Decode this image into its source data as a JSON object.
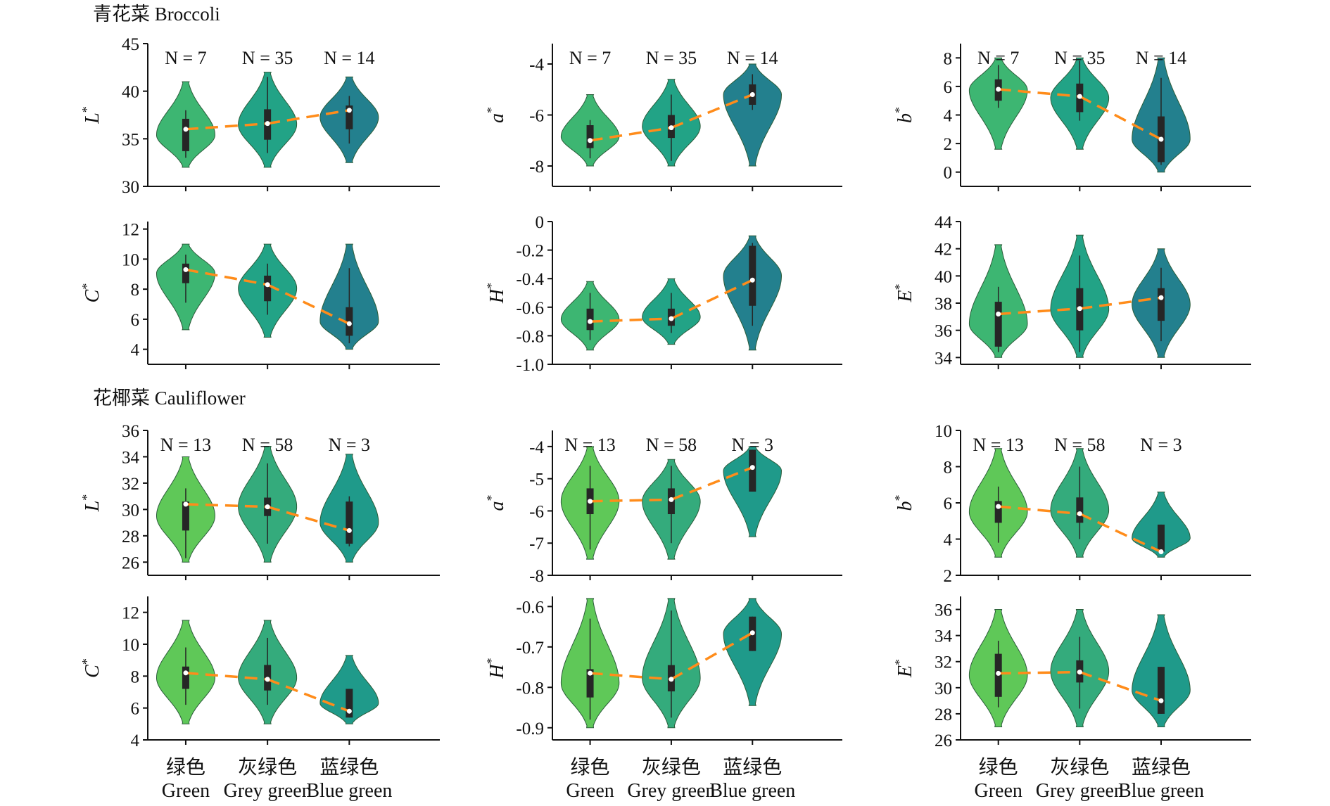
{
  "figure": {
    "section_titles": [
      "青花菜 Broccoli",
      "花椰菜 Cauliflower"
    ],
    "category_labels_cn": [
      "绿色",
      "灰绿色",
      "蓝绿色"
    ],
    "category_labels_en": [
      "Green",
      "Grey green",
      "Blue green"
    ],
    "trend_color": "#ff8c1a",
    "box_color": "#262626"
  },
  "chart_data": [
    {
      "type": "violin",
      "group": "Broccoli",
      "ylabel": "L",
      "ylabel_sup": "*",
      "ylim": [
        30,
        45
      ],
      "yticks": [
        30,
        35,
        40,
        45
      ],
      "ytick_labels": [
        "30",
        "35",
        "40",
        "45"
      ],
      "categories": [
        "Green",
        "Grey green",
        "Blue green"
      ],
      "n_labels": [
        "N = 7",
        "N = 35",
        "N = 14"
      ],
      "medians": [
        36.0,
        36.6,
        38.0
      ],
      "q1": [
        33.7,
        34.9,
        36.0
      ],
      "q3": [
        37.1,
        38.1,
        38.5
      ],
      "whisker_low": [
        33,
        33.5,
        34.5
      ],
      "whisker_high": [
        38,
        41.5,
        39.5
      ],
      "range": [
        [
          32,
          41
        ],
        [
          32,
          42
        ],
        [
          32.5,
          41.5
        ]
      ],
      "colors": [
        "#3db672",
        "#22a386",
        "#23808e"
      ]
    },
    {
      "type": "violin",
      "group": "Broccoli",
      "ylabel": "a",
      "ylabel_sup": "*",
      "ylim": [
        -8.8,
        -3.2
      ],
      "yticks": [
        -8,
        -6,
        -4
      ],
      "ytick_labels": [
        "-8",
        "-6",
        "-4"
      ],
      "categories": [
        "Green",
        "Grey green",
        "Blue green"
      ],
      "n_labels": [
        "N = 7",
        "N = 35",
        "N = 14"
      ],
      "medians": [
        -7.0,
        -6.5,
        -5.2
      ],
      "q1": [
        -7.3,
        -6.9,
        -5.6
      ],
      "q3": [
        -6.4,
        -6.0,
        -4.8
      ],
      "whisker_low": [
        -7.7,
        -7.8,
        -5.8
      ],
      "whisker_high": [
        -6.2,
        -5.2,
        -4.4
      ],
      "range": [
        [
          -8,
          -5.2
        ],
        [
          -8,
          -4.6
        ],
        [
          -8,
          -4
        ]
      ],
      "colors": [
        "#3db672",
        "#22a386",
        "#23808e"
      ]
    },
    {
      "type": "violin",
      "group": "Broccoli",
      "ylabel": "b",
      "ylabel_sup": "*",
      "ylim": [
        -1,
        9
      ],
      "yticks": [
        0,
        2,
        4,
        6,
        8
      ],
      "ytick_labels": [
        "0",
        "2",
        "4",
        "6",
        "8"
      ],
      "categories": [
        "Green",
        "Grey green",
        "Blue green"
      ],
      "n_labels": [
        "N = 7",
        "N = 35",
        "N = 14"
      ],
      "medians": [
        5.8,
        5.3,
        2.3
      ],
      "q1": [
        5.0,
        4.2,
        0.7
      ],
      "q3": [
        6.5,
        6.2,
        3.9
      ],
      "whisker_low": [
        4.5,
        3.6,
        0.5
      ],
      "whisker_high": [
        7.5,
        7.8,
        6.6
      ],
      "range": [
        [
          1.6,
          8
        ],
        [
          1.6,
          8
        ],
        [
          0,
          8
        ]
      ],
      "colors": [
        "#3db672",
        "#22a386",
        "#23808e"
      ]
    },
    {
      "type": "violin",
      "group": "Broccoli",
      "ylabel": "C",
      "ylabel_sup": "*",
      "ylim": [
        3,
        12.5
      ],
      "yticks": [
        4,
        6,
        8,
        10,
        12
      ],
      "ytick_labels": [
        "4",
        "6",
        "8",
        "10",
        "12"
      ],
      "categories": [
        "Green",
        "Grey green",
        "Blue green"
      ],
      "n_labels": [],
      "medians": [
        9.3,
        8.3,
        5.7
      ],
      "q1": [
        8.4,
        7.2,
        4.9
      ],
      "q3": [
        9.7,
        8.9,
        6.8
      ],
      "whisker_low": [
        7.1,
        6.3,
        4.4
      ],
      "whisker_high": [
        10.3,
        9.7,
        9.4
      ],
      "range": [
        [
          5.3,
          11
        ],
        [
          4.8,
          11
        ],
        [
          4,
          11
        ]
      ],
      "colors": [
        "#3db672",
        "#22a386",
        "#23808e"
      ]
    },
    {
      "type": "violin",
      "group": "Broccoli",
      "ylabel": "H",
      "ylabel_sup": "*",
      "ylim": [
        -1.0,
        0
      ],
      "yticks": [
        -1.0,
        -0.8,
        -0.6,
        -0.4,
        -0.2,
        0
      ],
      "ytick_labels": [
        "-1.0",
        "-0.8",
        "-0.6",
        "-0.4",
        "-0.2",
        "0"
      ],
      "categories": [
        "Green",
        "Grey green",
        "Blue green"
      ],
      "n_labels": [],
      "medians": [
        -0.7,
        -0.68,
        -0.41
      ],
      "q1": [
        -0.76,
        -0.73,
        -0.59
      ],
      "q3": [
        -0.61,
        -0.61,
        -0.17
      ],
      "whisker_low": [
        -0.83,
        -0.78,
        -0.73
      ],
      "whisker_high": [
        -0.5,
        -0.5,
        -0.15
      ],
      "range": [
        [
          -0.9,
          -0.42
        ],
        [
          -0.86,
          -0.4
        ],
        [
          -0.9,
          -0.1
        ]
      ],
      "colors": [
        "#3db672",
        "#22a386",
        "#23808e"
      ]
    },
    {
      "type": "violin",
      "group": "Broccoli",
      "ylabel": "E",
      "ylabel_sup": "*",
      "ylim": [
        33.5,
        44
      ],
      "yticks": [
        34,
        36,
        38,
        40,
        42,
        44
      ],
      "ytick_labels": [
        "34",
        "36",
        "38",
        "40",
        "42",
        "44"
      ],
      "categories": [
        "Green",
        "Grey green",
        "Blue green"
      ],
      "n_labels": [],
      "medians": [
        37.2,
        37.6,
        38.4
      ],
      "q1": [
        34.8,
        36.0,
        36.7
      ],
      "q3": [
        38.1,
        39.1,
        39.1
      ],
      "whisker_low": [
        34.4,
        34.4,
        35.2
      ],
      "whisker_high": [
        39.2,
        41.5,
        40.6
      ],
      "range": [
        [
          34,
          42.3
        ],
        [
          34,
          43
        ],
        [
          34,
          42
        ]
      ],
      "colors": [
        "#3db672",
        "#22a386",
        "#23808e"
      ]
    },
    {
      "type": "violin",
      "group": "Cauliflower",
      "ylabel": "L",
      "ylabel_sup": "*",
      "ylim": [
        25,
        36
      ],
      "yticks": [
        26,
        28,
        30,
        32,
        34,
        36
      ],
      "ytick_labels": [
        "26",
        "28",
        "30",
        "32",
        "34",
        "36"
      ],
      "categories": [
        "Green",
        "Grey green",
        "Blue green"
      ],
      "n_labels": [
        "N = 13",
        "N = 58",
        "N = 3"
      ],
      "medians": [
        30.4,
        30.2,
        28.4
      ],
      "q1": [
        28.4,
        29.5,
        27.4
      ],
      "q3": [
        30.6,
        30.9,
        30.6
      ],
      "whisker_low": [
        26.3,
        27.4,
        27.2
      ],
      "whisker_high": [
        31.6,
        33.5,
        31.0
      ],
      "range": [
        [
          26,
          34
        ],
        [
          26,
          34.8
        ],
        [
          26,
          34.2
        ]
      ],
      "colors": [
        "#5fc858",
        "#34ab7c",
        "#1f9a8a"
      ]
    },
    {
      "type": "violin",
      "group": "Cauliflower",
      "ylabel": "a",
      "ylabel_sup": "*",
      "ylim": [
        -8,
        -3.5
      ],
      "yticks": [
        -8,
        -7,
        -6,
        -5,
        -4
      ],
      "ytick_labels": [
        "-8",
        "-7",
        "-6",
        "-5",
        "-4"
      ],
      "categories": [
        "Green",
        "Grey green",
        "Blue green"
      ],
      "n_labels": [
        "N = 13",
        "N = 58",
        "N = 3"
      ],
      "medians": [
        -5.7,
        -5.65,
        -4.65
      ],
      "q1": [
        -6.1,
        -6.1,
        -5.4
      ],
      "q3": [
        -5.3,
        -5.3,
        -4.1
      ],
      "whisker_low": [
        -7.2,
        -7.0,
        -5.4
      ],
      "whisker_high": [
        -4.6,
        -4.6,
        -4.1
      ],
      "range": [
        [
          -7.5,
          -4
        ],
        [
          -7.5,
          -4.4
        ],
        [
          -6.8,
          -4
        ]
      ],
      "colors": [
        "#5fc858",
        "#34ab7c",
        "#1f9a8a"
      ]
    },
    {
      "type": "violin",
      "group": "Cauliflower",
      "ylabel": "b",
      "ylabel_sup": "*",
      "ylim": [
        2,
        10
      ],
      "yticks": [
        2,
        4,
        6,
        8,
        10
      ],
      "ytick_labels": [
        "2",
        "4",
        "6",
        "8",
        "10"
      ],
      "categories": [
        "Green",
        "Grey green",
        "Blue green"
      ],
      "n_labels": [
        "N = 13",
        "N = 58",
        "N = 3"
      ],
      "medians": [
        5.8,
        5.4,
        3.3
      ],
      "q1": [
        4.9,
        4.9,
        3.3
      ],
      "q3": [
        6.1,
        6.3,
        4.8
      ],
      "whisker_low": [
        3.8,
        4.0,
        3.3
      ],
      "whisker_high": [
        6.9,
        8.0,
        4.8
      ],
      "range": [
        [
          3,
          9
        ],
        [
          3,
          9
        ],
        [
          3,
          6.6
        ]
      ],
      "colors": [
        "#5fc858",
        "#34ab7c",
        "#1f9a8a"
      ]
    },
    {
      "type": "violin",
      "group": "Cauliflower",
      "ylabel": "C",
      "ylabel_sup": "*",
      "ylim": [
        4,
        13
      ],
      "yticks": [
        4,
        6,
        8,
        10,
        12
      ],
      "ytick_labels": [
        "4",
        "6",
        "8",
        "10",
        "12"
      ],
      "categories": [
        "Green",
        "Grey green",
        "Blue green"
      ],
      "n_labels": [],
      "medians": [
        8.2,
        7.8,
        5.8
      ],
      "q1": [
        7.2,
        7.1,
        5.4
      ],
      "q3": [
        8.6,
        8.7,
        7.2
      ],
      "whisker_low": [
        6.2,
        6.2,
        5.4
      ],
      "whisker_high": [
        9.8,
        10.4,
        7.2
      ],
      "range": [
        [
          5,
          11.5
        ],
        [
          5,
          11.5
        ],
        [
          5,
          9.3
        ]
      ],
      "colors": [
        "#5fc858",
        "#34ab7c",
        "#1f9a8a"
      ]
    },
    {
      "type": "violin",
      "group": "Cauliflower",
      "ylabel": "H",
      "ylabel_sup": "*",
      "ylim": [
        -0.93,
        -0.575
      ],
      "yticks": [
        -0.9,
        -0.8,
        -0.7,
        -0.6
      ],
      "ytick_labels": [
        "-0.9",
        "-0.8",
        "-0.7",
        "-0.6"
      ],
      "categories": [
        "Green",
        "Grey green",
        "Blue green"
      ],
      "n_labels": [],
      "medians": [
        -0.765,
        -0.78,
        -0.665
      ],
      "q1": [
        -0.825,
        -0.81,
        -0.71
      ],
      "q3": [
        -0.755,
        -0.745,
        -0.625
      ],
      "whisker_low": [
        -0.88,
        -0.875,
        -0.71
      ],
      "whisker_high": [
        -0.63,
        -0.61,
        -0.625
      ],
      "range": [
        [
          -0.9,
          -0.58
        ],
        [
          -0.9,
          -0.58
        ],
        [
          -0.845,
          -0.58
        ]
      ],
      "colors": [
        "#5fc858",
        "#34ab7c",
        "#1f9a8a"
      ]
    },
    {
      "type": "violin",
      "group": "Cauliflower",
      "ylabel": "E",
      "ylabel_sup": "*",
      "ylim": [
        26,
        37
      ],
      "yticks": [
        26,
        28,
        30,
        32,
        34,
        36
      ],
      "ytick_labels": [
        "26",
        "28",
        "30",
        "32",
        "34",
        "36"
      ],
      "categories": [
        "Green",
        "Grey green",
        "Blue green"
      ],
      "n_labels": [],
      "medians": [
        31.1,
        31.2,
        29.0
      ],
      "q1": [
        29.3,
        30.4,
        28.0
      ],
      "q3": [
        32.6,
        32.1,
        31.6
      ],
      "whisker_low": [
        28.5,
        28.4,
        28.0
      ],
      "whisker_high": [
        33.6,
        33.9,
        31.6
      ],
      "range": [
        [
          27,
          36
        ],
        [
          27,
          36
        ],
        [
          27,
          35.6
        ]
      ],
      "colors": [
        "#5fc858",
        "#34ab7c",
        "#1f9a8a"
      ]
    }
  ]
}
